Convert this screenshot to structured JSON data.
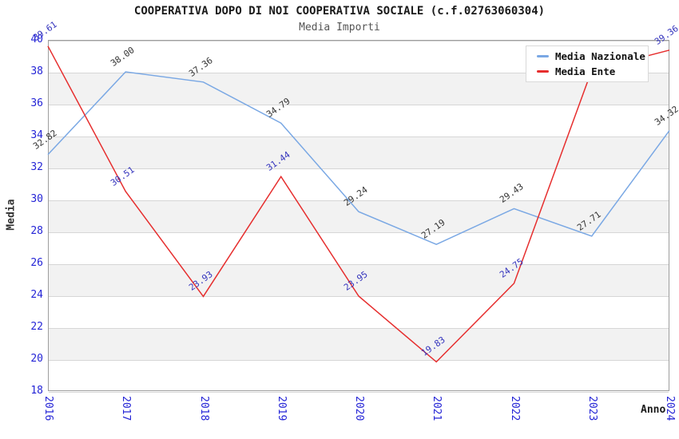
{
  "title": "COOPERATIVA DOPO DI NOI COOPERATIVA SOCIALE (c.f.02763060304)",
  "subtitle": "Media Importi",
  "chart_data": {
    "type": "line",
    "x": [
      2016,
      2017,
      2018,
      2019,
      2020,
      2021,
      2022,
      2023,
      2024
    ],
    "xlabel": "Anno",
    "ylabel": "Media",
    "ylim": [
      18,
      40
    ],
    "ytick_step": 2,
    "grid": true,
    "legend_position": "top-right",
    "series": [
      {
        "name": "Media Nazionale",
        "color": "#7aa8e4",
        "label_color": "#333333",
        "values": [
          32.82,
          38.0,
          37.36,
          34.79,
          29.24,
          27.19,
          29.43,
          27.71,
          34.32
        ]
      },
      {
        "name": "Media Ente",
        "color": "#e62e2e",
        "label_color": "#3434bd",
        "values": [
          39.61,
          30.51,
          23.93,
          31.44,
          23.95,
          19.83,
          24.75,
          38.1,
          39.36
        ],
        "label_hidden_indices": [
          7
        ],
        "estimated_indices": [
          7
        ]
      }
    ],
    "colors": {
      "axis_tick": "#2424d6",
      "band": "#f2f2f2",
      "gridline": "#d6d6d6",
      "plot_border": "#9e9e9e"
    }
  }
}
